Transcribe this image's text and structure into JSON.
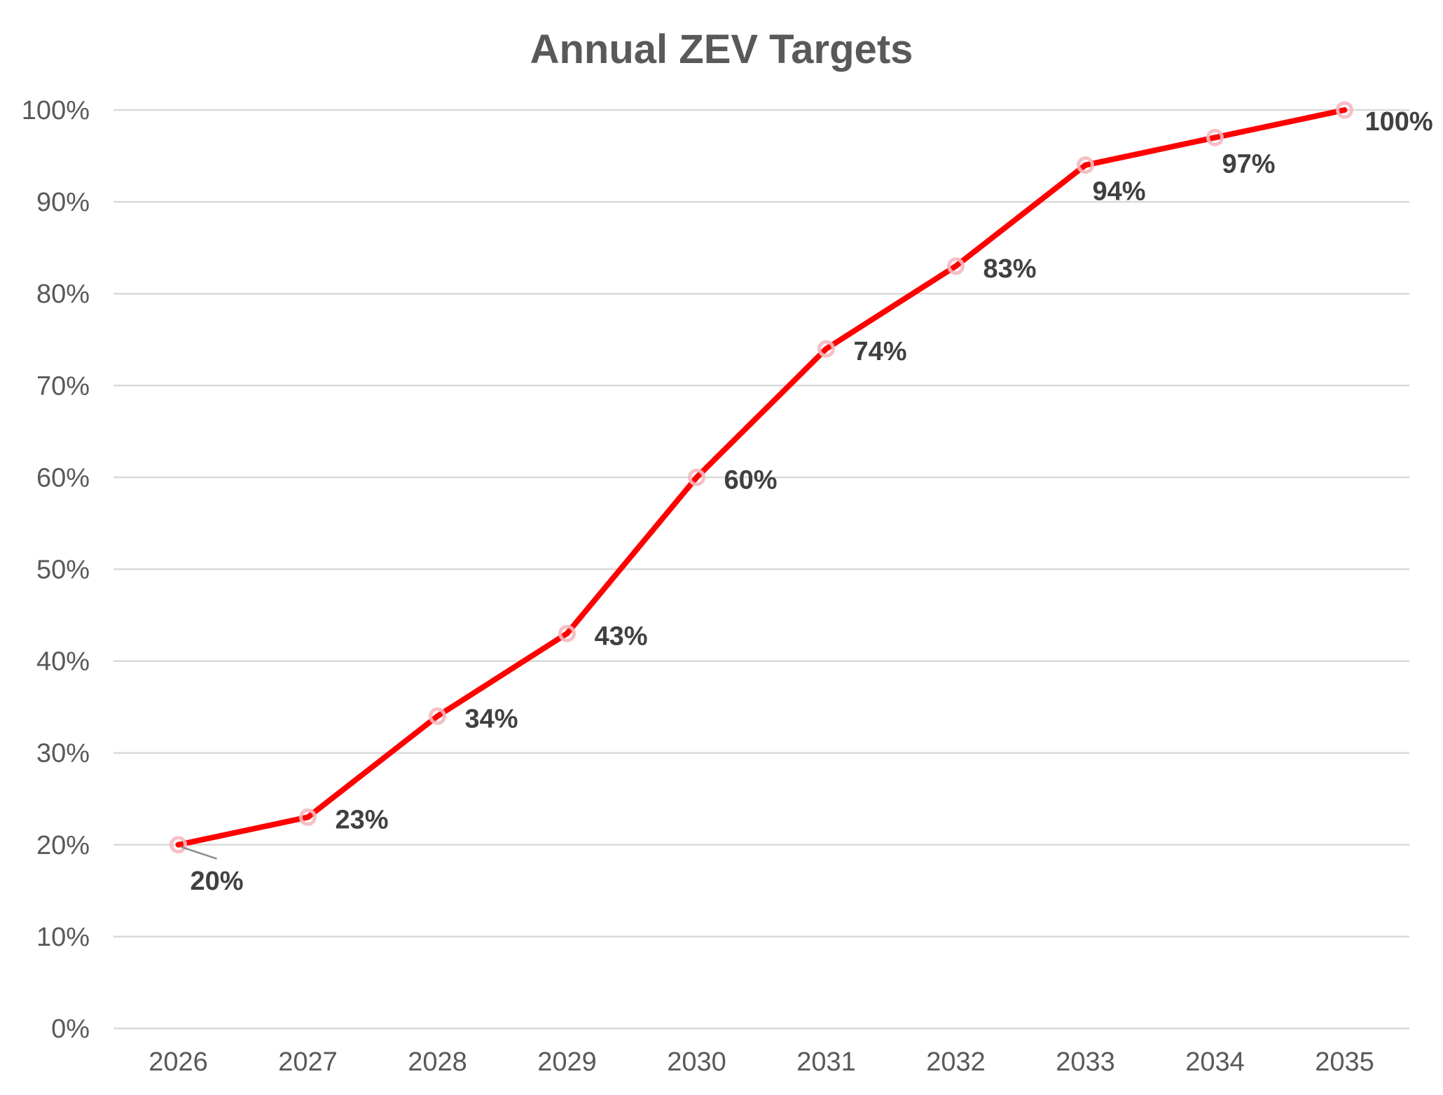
{
  "chart_data": {
    "type": "line",
    "title": "Annual ZEV Targets",
    "xlabel": "",
    "ylabel": "",
    "categories": [
      "2026",
      "2027",
      "2028",
      "2029",
      "2030",
      "2031",
      "2032",
      "2033",
      "2034",
      "2035"
    ],
    "series": [
      {
        "values": [
          20,
          23,
          34,
          43,
          60,
          74,
          83,
          94,
          97,
          100
        ],
        "data_labels": [
          "20%",
          "23%",
          "34%",
          "43%",
          "60%",
          "74%",
          "83%",
          "94%",
          "97%",
          "100%"
        ],
        "color": "#ff0000",
        "marker_color": "#f4b8c0"
      }
    ],
    "ylim": [
      0,
      100
    ],
    "y_ticks": [
      0,
      10,
      20,
      30,
      40,
      50,
      60,
      70,
      80,
      90,
      100
    ],
    "y_tick_labels": [
      "0%",
      "10%",
      "20%",
      "30%",
      "40%",
      "50%",
      "60%",
      "70%",
      "80%",
      "90%",
      "100%"
    ],
    "grid": true,
    "legend": "none"
  },
  "colors": {
    "line": "#ff0000",
    "marker": "#f4b8c0",
    "gridline": "#d9d9d9",
    "text": "#595959",
    "data_label": "#404040"
  }
}
